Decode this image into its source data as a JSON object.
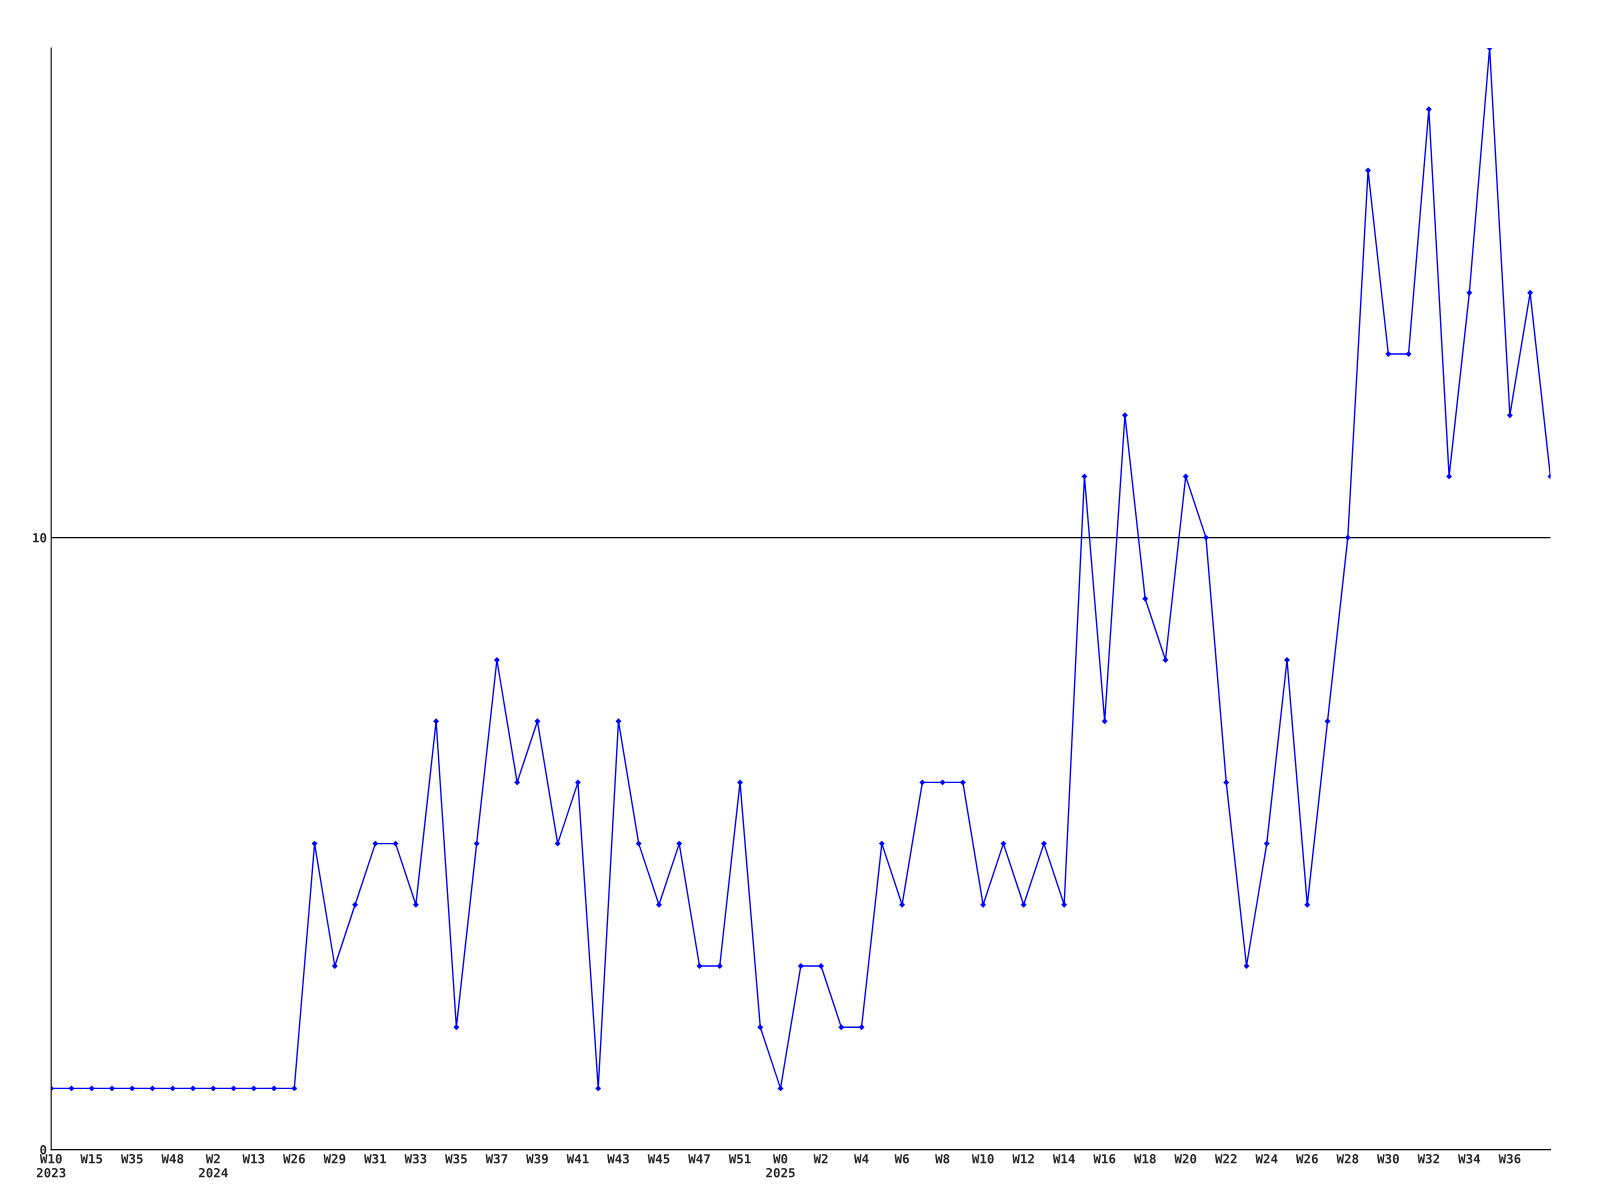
{
  "chart_data": {
    "type": "line",
    "categories": [
      "W10\n2023",
      null,
      "W15",
      null,
      "W35",
      null,
      "W48",
      null,
      "W2\n2024",
      null,
      "W13",
      null,
      "W26",
      null,
      "W29",
      null,
      "W31",
      null,
      "W33",
      null,
      "W35",
      null,
      "W37",
      null,
      "W39",
      null,
      "W41",
      null,
      "W43",
      null,
      "W45",
      null,
      "W47",
      null,
      "W51",
      null,
      "W0\n2025",
      null,
      "W2",
      null,
      "W4",
      null,
      "W6",
      null,
      "W8",
      null,
      "W10",
      null,
      "W12",
      null,
      "W14",
      null,
      "W16",
      null,
      "W18",
      null,
      "W20",
      null,
      "W22",
      null,
      "W24",
      null,
      "W26",
      null,
      "W28",
      null,
      "W30",
      null,
      "W32",
      null,
      "W34",
      null,
      "W36",
      null,
      null
    ],
    "series": [
      {
        "color": "#0000ff",
        "values": [
          1,
          1,
          1,
          1,
          1,
          1,
          1,
          1,
          1,
          1,
          1,
          1,
          1,
          5,
          3,
          4,
          5,
          5,
          4,
          7,
          2,
          5,
          8,
          6,
          7,
          5,
          6,
          1,
          7,
          5,
          4,
          5,
          3,
          3,
          6,
          2,
          1,
          3,
          3,
          2,
          2,
          5,
          4,
          6,
          6,
          6,
          4,
          5,
          4,
          5,
          4,
          11,
          7,
          12,
          9,
          8,
          11,
          10,
          6,
          3,
          5,
          8,
          4,
          7,
          10,
          16,
          13,
          13,
          17,
          11,
          14,
          18,
          12,
          14,
          11
        ]
      }
    ],
    "ylim": [
      0,
      18
    ],
    "yticks": [
      0,
      10
    ],
    "grid": "y",
    "marker": "diamond",
    "line_style": "solid",
    "legend": false
  }
}
